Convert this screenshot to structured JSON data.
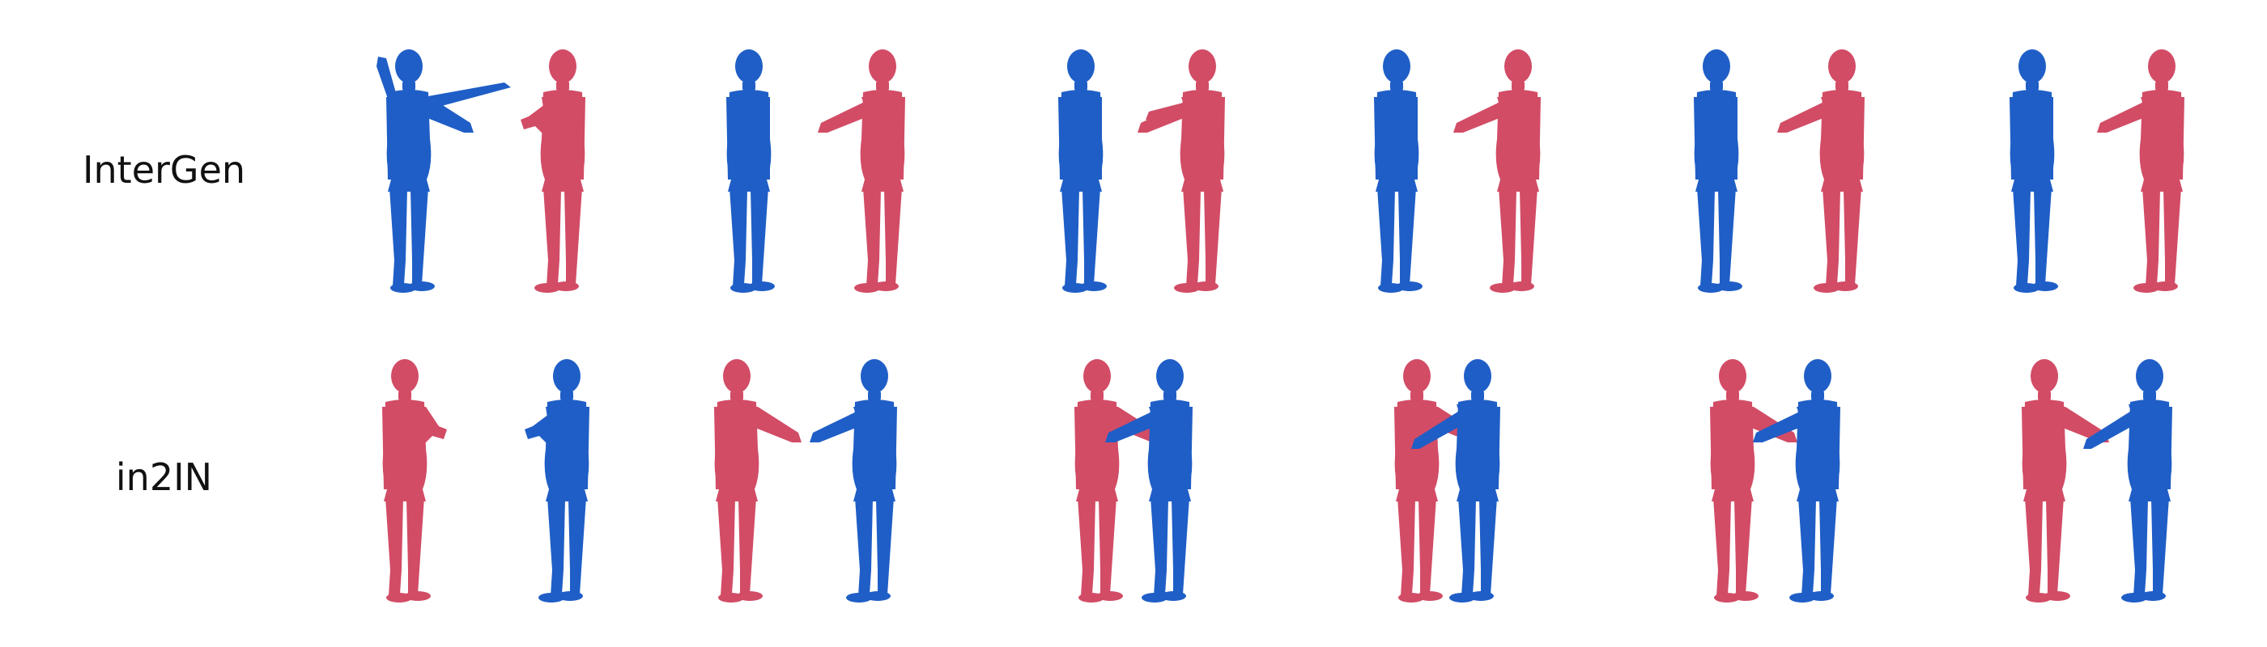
{
  "rows": [
    {
      "label": "InterGen"
    },
    {
      "label": "in2IN"
    }
  ],
  "colors": {
    "blue": "#1f5ec6",
    "red": "#d24c66",
    "background": "#ffffff"
  },
  "frames_per_row": 6
}
